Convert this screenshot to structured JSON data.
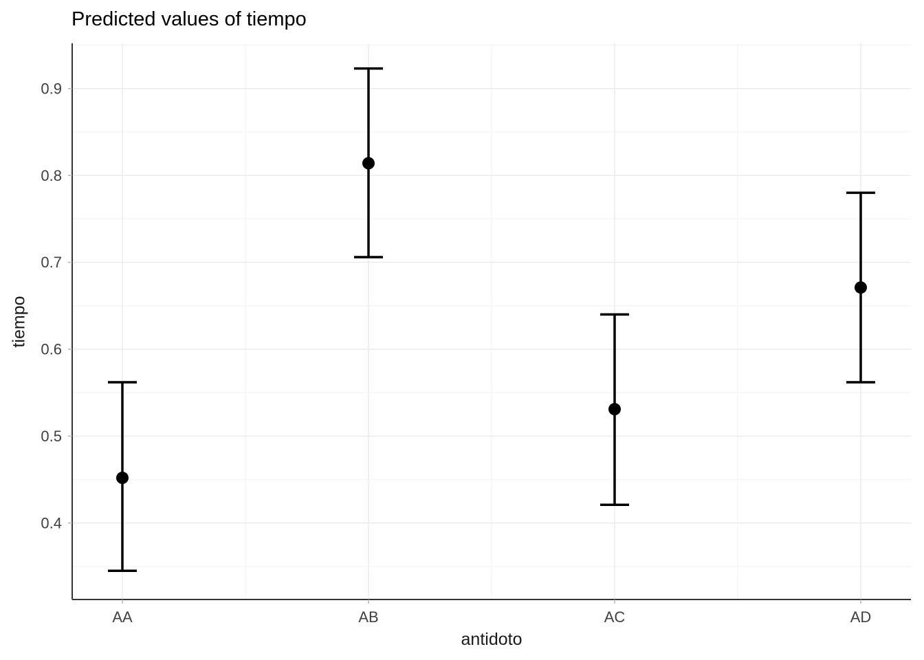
{
  "chart_data": {
    "type": "pointrange",
    "title": "Predicted values of tiempo",
    "xlabel": "antidoto",
    "ylabel": "tiempo",
    "categories": [
      "AA",
      "AB",
      "AC",
      "AD"
    ],
    "series": [
      {
        "name": "predicted",
        "estimates": [
          0.452,
          0.814,
          0.531,
          0.671
        ],
        "ci_low": [
          0.345,
          0.706,
          0.421,
          0.562
        ],
        "ci_high": [
          0.562,
          0.923,
          0.64,
          0.78
        ]
      }
    ],
    "y_ticks": [
      0.4,
      0.5,
      0.6,
      0.7,
      0.8,
      0.9
    ],
    "ylim": [
      0.312,
      0.952
    ],
    "grid": true,
    "legend": "none",
    "colors": {
      "point": "#000000",
      "errorbar": "#000000",
      "grid_major": "#ebebeb",
      "grid_minor": "#f6f6f6",
      "axis_line": "#333333",
      "tick_mark": "#b3b3b3",
      "tick_label": "#404040",
      "title": "#000000"
    }
  }
}
